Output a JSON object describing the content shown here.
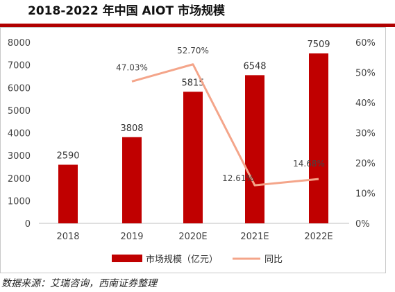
{
  "title": "2018-2022 年中国 AIOT 市场规模",
  "source": "数据来源：艾瑞咨询，西南证券整理",
  "colors": {
    "bar": "#c00000",
    "line": "#f4a58a",
    "title_rule": "#b00000"
  },
  "chart_data": {
    "type": "bar",
    "categories": [
      "2018",
      "2019",
      "2020E",
      "2021E",
      "2022E"
    ],
    "series": [
      {
        "name": "市场规模（亿元）",
        "type": "bar",
        "axis": "left",
        "values": [
          2590,
          3808,
          5815,
          6548,
          7509
        ],
        "labels": [
          "2590",
          "3808",
          "5815",
          "6548",
          "7509"
        ]
      },
      {
        "name": "同比",
        "type": "line",
        "axis": "right",
        "values": [
          null,
          47.03,
          52.7,
          12.61,
          14.68
        ],
        "labels": [
          "",
          "47.03%",
          "52.70%",
          "12.61%",
          "14.68%"
        ]
      }
    ],
    "y_left": {
      "min": 0,
      "max": 8000,
      "ticks": [
        "0",
        "1000",
        "2000",
        "3000",
        "4000",
        "5000",
        "6000",
        "7000",
        "8000"
      ]
    },
    "y_right": {
      "min": 0,
      "max": 60,
      "ticks": [
        "0%",
        "10%",
        "20%",
        "30%",
        "40%",
        "50%",
        "60%"
      ]
    },
    "legend": "bottom",
    "grid": false
  }
}
